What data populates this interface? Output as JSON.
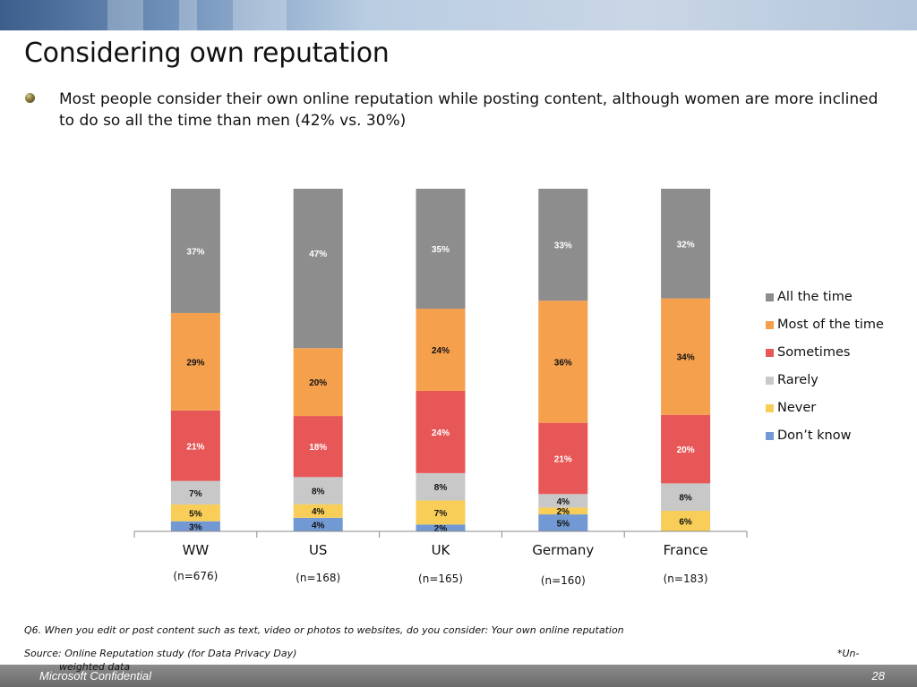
{
  "slide": {
    "title": "Considering own reputation",
    "bullet": "Most people consider their own online reputation while posting content, although women are more inclined to do so all the time than men (42% vs. 30%)",
    "question": "Q6. When you edit or post content such as text, video or photos to websites, do you  consider: Your own online reputation",
    "source": "Source: Online Reputation study (for Data Privacy Day)",
    "unweighted_a": "*Un-",
    "unweighted_b": "weighted data",
    "footer_left": "Microsoft Confidential",
    "page_number": "28"
  },
  "chart_data": {
    "type": "bar",
    "stacked": true,
    "stacked_to_100": true,
    "categories": [
      "WW",
      "US",
      "UK",
      "Germany",
      "France"
    ],
    "sample_sizes": [
      "(n=676)",
      "(n=168)",
      "(n=165)",
      "(n=160)",
      "(n=183)"
    ],
    "series": [
      {
        "name": "Don’t know",
        "color": "#7299d3",
        "values": [
          3,
          4,
          2,
          5,
          0
        ],
        "labels": [
          "3%",
          "4%",
          "2%",
          "5%",
          ""
        ]
      },
      {
        "name": "Never",
        "color": "#f8ce59",
        "values": [
          5,
          4,
          7,
          2,
          6
        ],
        "labels": [
          "5%",
          "4%",
          "7%",
          "2%",
          "6%"
        ]
      },
      {
        "name": "Rarely",
        "color": "#c8c8c8",
        "values": [
          7,
          8,
          8,
          4,
          8
        ],
        "labels": [
          "7%",
          "8%",
          "8%",
          "4%",
          "8%"
        ]
      },
      {
        "name": "Sometimes",
        "color": "#e85757",
        "values": [
          21,
          18,
          24,
          21,
          20
        ],
        "labels": [
          "21%",
          "18%",
          "24%",
          "21%",
          "20%"
        ]
      },
      {
        "name": "Most of the time",
        "color": "#f5a04d",
        "values": [
          29,
          20,
          24,
          36,
          34
        ],
        "labels": [
          "29%",
          "20%",
          "24%",
          "36%",
          "34%"
        ]
      },
      {
        "name": "All the time",
        "color": "#8d8d8d",
        "values": [
          37,
          47,
          35,
          33,
          32
        ],
        "labels": [
          "37%",
          "47%",
          "35%",
          "33%",
          "32%"
        ]
      }
    ],
    "legend": "right",
    "grid": false,
    "ylim": [
      0,
      100
    ]
  }
}
